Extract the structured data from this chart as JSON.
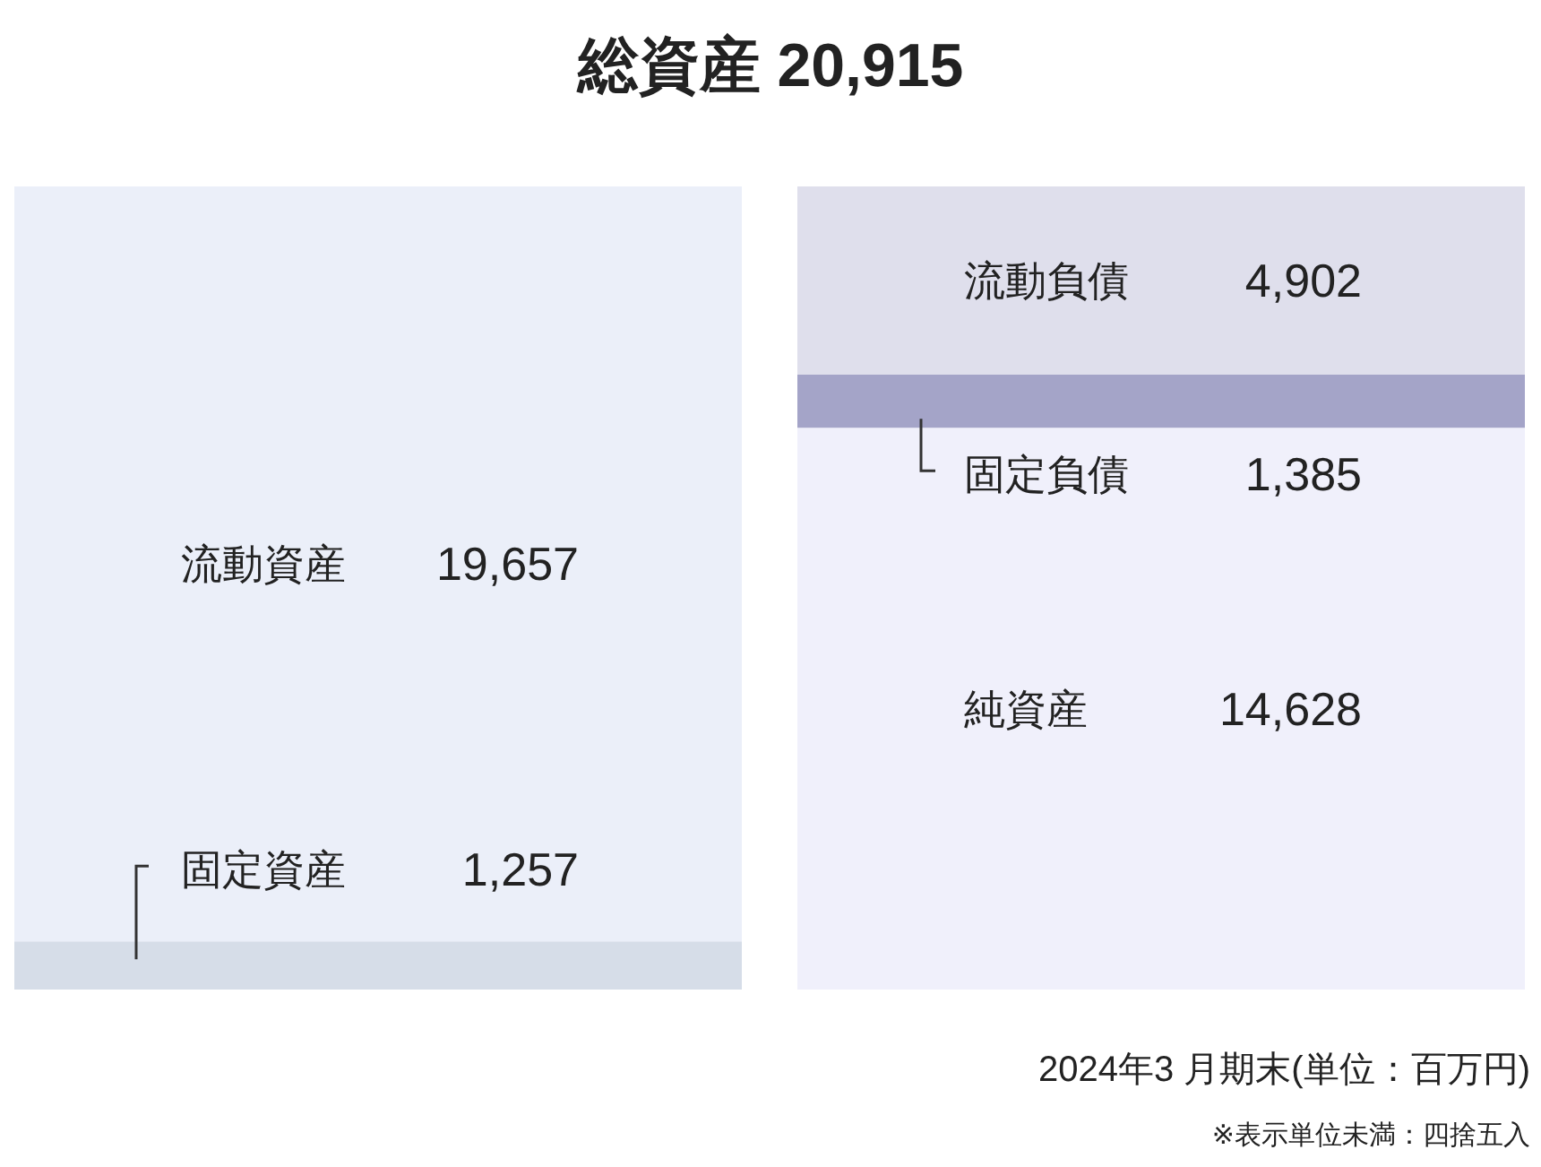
{
  "chart_data": {
    "type": "bar",
    "stacked": true,
    "title": "総資産 20,915",
    "categories": [
      null,
      null
    ],
    "series": [
      {
        "name": "固定資産",
        "color": "#d6dde8",
        "values": [
          1257,
          null
        ],
        "value_labels": [
          "1,257",
          null
        ]
      },
      {
        "name": "流動資産",
        "color": "#ebeff9",
        "values": [
          19657,
          null
        ],
        "value_labels": [
          "19,657",
          null
        ]
      },
      {
        "name": "純資産",
        "color": "#f0f0fb",
        "values": [
          null,
          14628
        ],
        "value_labels": [
          null,
          "14,628"
        ]
      },
      {
        "name": "固定負債",
        "color": "#a4a4c8",
        "values": [
          null,
          1385
        ],
        "value_labels": [
          null,
          "1,385"
        ]
      },
      {
        "name": "流動負債",
        "color": "#dfdfec",
        "values": [
          null,
          4902
        ],
        "value_labels": [
          null,
          "4,902"
        ]
      }
    ],
    "annotations": [
      "2024年3 月期末(単位：百万円)",
      "※表示単位未満：四捨五入"
    ]
  }
}
